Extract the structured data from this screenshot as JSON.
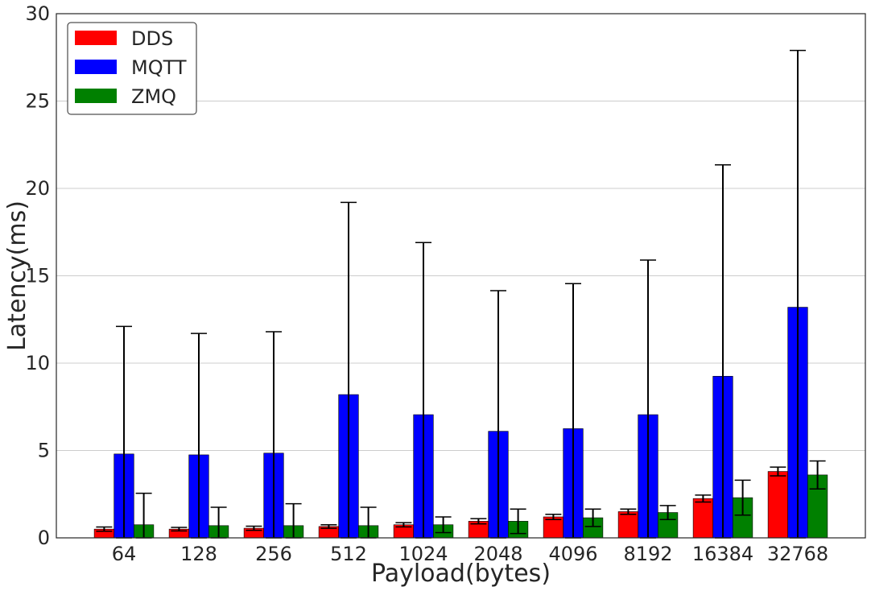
{
  "chart_data": {
    "type": "bar",
    "title": "",
    "xlabel": "Payload(bytes)",
    "ylabel": "Latency(ms)",
    "ylim": [
      0,
      30
    ],
    "yticks": [
      0,
      5,
      10,
      15,
      20,
      25,
      30
    ],
    "ytick_labels": [
      "0",
      "5",
      "10",
      "15",
      "20",
      "25",
      "30"
    ],
    "grid": "horizontal",
    "legend_position": "top-left",
    "categories": [
      "64",
      "128",
      "256",
      "512",
      "1024",
      "2048",
      "4096",
      "8192",
      "16384",
      "32768"
    ],
    "series": [
      {
        "name": "DDS",
        "color": "#ff0000",
        "values": [
          0.5,
          0.5,
          0.55,
          0.65,
          0.75,
          0.95,
          1.2,
          1.5,
          2.25,
          3.8
        ],
        "error": [
          0.12,
          0.1,
          0.12,
          0.1,
          0.12,
          0.15,
          0.15,
          0.15,
          0.2,
          0.25
        ]
      },
      {
        "name": "MQTT",
        "color": "#0000ff",
        "values": [
          4.8,
          4.75,
          4.85,
          8.2,
          7.05,
          6.1,
          6.25,
          7.05,
          9.25,
          13.2
        ],
        "error": [
          7.3,
          6.95,
          6.95,
          11.0,
          9.85,
          8.05,
          8.3,
          8.85,
          12.1,
          14.7
        ]
      },
      {
        "name": "ZMQ",
        "color": "#008000",
        "values": [
          0.75,
          0.7,
          0.7,
          0.7,
          0.75,
          0.95,
          1.15,
          1.45,
          2.3,
          3.6
        ],
        "error": [
          1.8,
          1.05,
          1.25,
          1.05,
          0.45,
          0.7,
          0.5,
          0.4,
          1.0,
          0.8
        ]
      }
    ]
  }
}
